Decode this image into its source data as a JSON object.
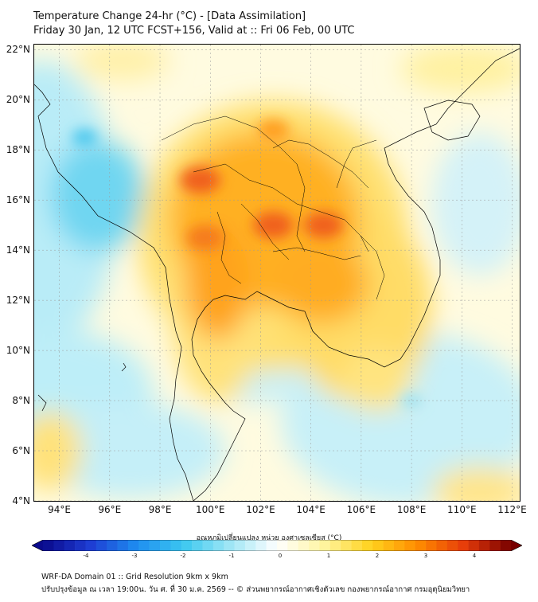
{
  "title": {
    "line1": "Temperature Change 24-hr (°C) - [Data Assimilation]",
    "line2": "Friday 30 Jan, 12 UTC FCST+156, Valid at :: Fri 06 Feb, 00 UTC"
  },
  "map": {
    "lat_range": [
      4,
      22.2
    ],
    "lon_range": [
      93,
      112.3
    ],
    "lat_ticks": [
      "22°N",
      "20°N",
      "18°N",
      "16°N",
      "14°N",
      "12°N",
      "10°N",
      "8°N",
      "6°N",
      "4°N"
    ],
    "lon_ticks": [
      "94°E",
      "96°E",
      "98°E",
      "100°E",
      "102°E",
      "104°E",
      "106°E",
      "108°E",
      "110°E",
      "112°E"
    ],
    "lat_values": [
      22,
      20,
      18,
      16,
      14,
      12,
      10,
      8,
      6,
      4
    ],
    "lon_values": [
      94,
      96,
      98,
      100,
      102,
      104,
      106,
      108,
      110,
      112
    ],
    "grid": true,
    "hotspots": [
      {
        "lon": 99.6,
        "lat": 16.8,
        "value": 3.0
      },
      {
        "lon": 99.8,
        "lat": 14.5,
        "value": 2.7
      },
      {
        "lon": 102.5,
        "lat": 15.0,
        "value": 3.0
      },
      {
        "lon": 104.5,
        "lat": 15.0,
        "value": 2.9
      },
      {
        "lon": 102.5,
        "lat": 18.8,
        "value": 2.0
      },
      {
        "lon": 95.0,
        "lat": 18.5,
        "value": -1.2
      },
      {
        "lon": 108.0,
        "lat": 8.0,
        "value": -0.8
      }
    ]
  },
  "colorbar": {
    "label": "อุณหภูมิเปลี่ยนแปลง หน่วย องศาเซลเซียส (°C)",
    "min": -4,
    "max": 4,
    "ticks": [
      "-4",
      "-3",
      "-2",
      "-1",
      "0",
      "1",
      "2",
      "3",
      "4"
    ],
    "colors": [
      "#0a0a8c",
      "#1e3cd2",
      "#1e8cf0",
      "#3cc8f0",
      "#a0e6f5",
      "#ffffff",
      "#fff5a0",
      "#ffd21e",
      "#ff8c00",
      "#e63c0a",
      "#780000"
    ]
  },
  "footer": {
    "line1": "WRF-DA Domain 01 :: Grid Resolution 9km x 9km",
    "line2": "ปรับปรุงข้อมูล ณ เวลา 19:00น. วัน ศ. ที่ 30 ม.ค. 2569 -- © ส่วนพยากรณ์อากาศเชิงตัวเลข กองพยากรณ์อากาศ กรมอุตุนิยมวิทยา"
  }
}
